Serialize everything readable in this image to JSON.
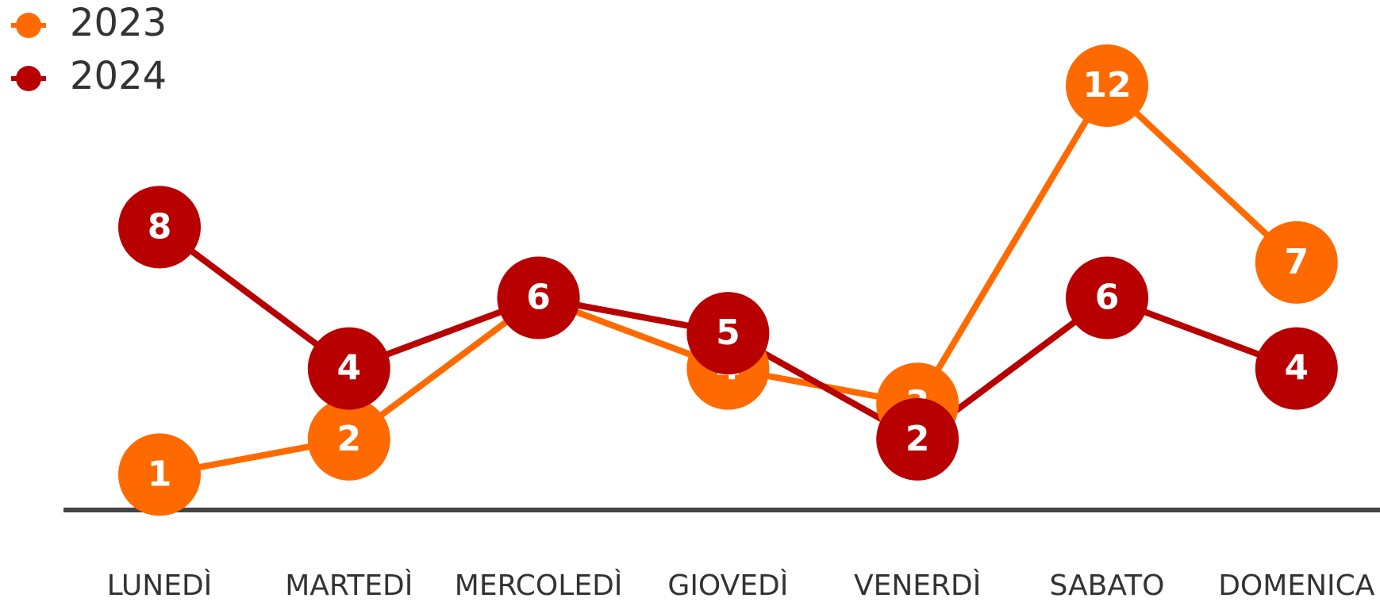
{
  "chart_data": {
    "type": "line",
    "categories": [
      "LUNEDÌ",
      "MARTEDÌ",
      "MERCOLEDÌ",
      "GIOVEDÌ",
      "VENERDÌ",
      "SABATO",
      "DOMENICA"
    ],
    "series": [
      {
        "name": "2023",
        "color": "#ff6a00",
        "values": [
          1,
          2,
          6,
          4,
          3,
          12,
          7
        ]
      },
      {
        "name": "2024",
        "color": "#b80000",
        "values": [
          8,
          4,
          6,
          5,
          2,
          6,
          4
        ]
      }
    ],
    "ylim": [
      0,
      12
    ],
    "legend": "top-left"
  }
}
